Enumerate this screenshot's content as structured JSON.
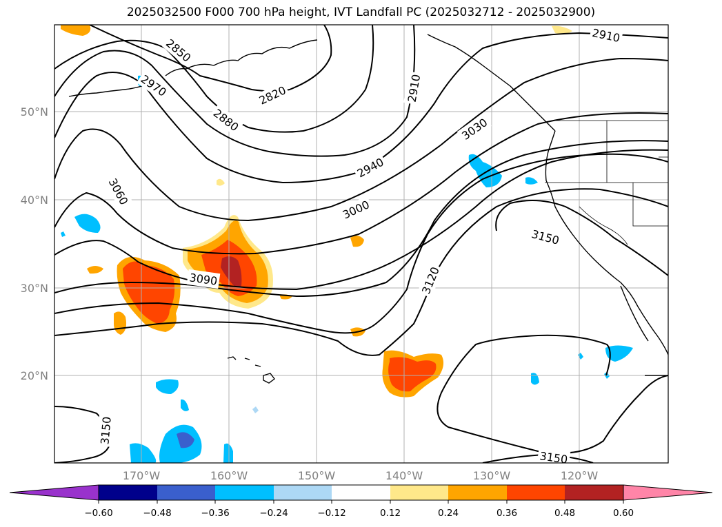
{
  "title": "2025032500 F000 700 hPa height, IVT Landfall PC (2025032712 - 2025032900)",
  "map": {
    "lat_labels": [
      "50°N",
      "40°N",
      "30°N",
      "20°N"
    ],
    "lon_labels": [
      "170°W",
      "160°W",
      "150°W",
      "140°W",
      "130°W",
      "120°W"
    ],
    "contour_labels": [
      "2850",
      "2970",
      "2820",
      "2880",
      "2910",
      "2910",
      "3030",
      "2940",
      "3060",
      "3000",
      "3090",
      "3120",
      "3150",
      "3150",
      "3150"
    ]
  },
  "colorbar": {
    "ticks": [
      "−0.60",
      "−0.48",
      "−0.36",
      "−0.24",
      "−0.12",
      "0.12",
      "0.24",
      "0.36",
      "0.48",
      "0.60"
    ],
    "colors": {
      "under": "#9932cc",
      "bins": [
        "#00008b",
        "#3a5fcd",
        "#00bfff",
        "#add8f5",
        "#ffffff",
        "#ffe88a",
        "#ffa500",
        "#ff4500",
        "#b22222"
      ],
      "over": "#ff85a8"
    }
  }
}
